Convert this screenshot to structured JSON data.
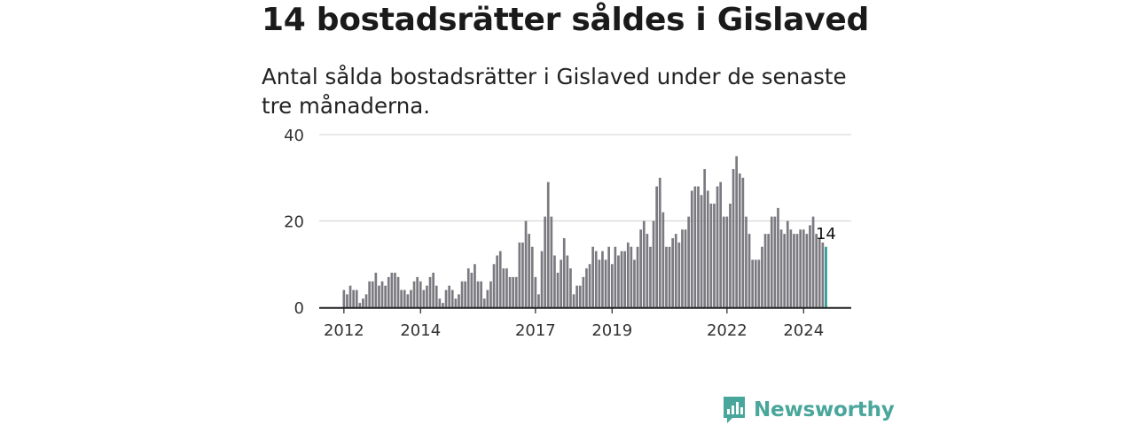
{
  "header": {
    "title": "14 bostadsrätter såldes i Gislaved",
    "subtitle": "Antal sålda bostadsrätter i Gislaved under de senaste tre månaderna."
  },
  "brand": {
    "name": "Newsworthy",
    "color": "#49a69b"
  },
  "chart_data": {
    "type": "bar",
    "title": "",
    "xlabel": "",
    "ylabel": "",
    "ylim": [
      0,
      40
    ],
    "yticks": [
      0,
      20,
      40
    ],
    "grid": true,
    "xticks": [
      "2012",
      "2014",
      "2017",
      "2019",
      "2022",
      "2024"
    ],
    "highlight_label": "14",
    "colors": {
      "bar": "#7b7a80",
      "highlight": "#2a9d90"
    },
    "categories": [
      "2012-01",
      "2012-02",
      "2012-03",
      "2012-04",
      "2012-05",
      "2012-06",
      "2012-07",
      "2012-08",
      "2012-09",
      "2012-10",
      "2012-11",
      "2012-12",
      "2013-01",
      "2013-02",
      "2013-03",
      "2013-04",
      "2013-05",
      "2013-06",
      "2013-07",
      "2013-08",
      "2013-09",
      "2013-10",
      "2013-11",
      "2013-12",
      "2014-01",
      "2014-02",
      "2014-03",
      "2014-04",
      "2014-05",
      "2014-06",
      "2014-07",
      "2014-08",
      "2014-09",
      "2014-10",
      "2014-11",
      "2014-12",
      "2015-01",
      "2015-02",
      "2015-03",
      "2015-04",
      "2015-05",
      "2015-06",
      "2015-07",
      "2015-08",
      "2015-09",
      "2015-10",
      "2015-11",
      "2015-12",
      "2016-01",
      "2016-02",
      "2016-03",
      "2016-04",
      "2016-05",
      "2016-06",
      "2016-07",
      "2016-08",
      "2016-09",
      "2016-10",
      "2016-11",
      "2016-12",
      "2017-01",
      "2017-02",
      "2017-03",
      "2017-04",
      "2017-05",
      "2017-06",
      "2017-07",
      "2017-08",
      "2017-09",
      "2017-10",
      "2017-11",
      "2017-12",
      "2018-01",
      "2018-02",
      "2018-03",
      "2018-04",
      "2018-05",
      "2018-06",
      "2018-07",
      "2018-08",
      "2018-09",
      "2018-10",
      "2018-11",
      "2018-12",
      "2019-01",
      "2019-02",
      "2019-03",
      "2019-04",
      "2019-05",
      "2019-06",
      "2019-07",
      "2019-08",
      "2019-09",
      "2019-10",
      "2019-11",
      "2019-12",
      "2020-01",
      "2020-02",
      "2020-03",
      "2020-04",
      "2020-05",
      "2020-06",
      "2020-07",
      "2020-08",
      "2020-09",
      "2020-10",
      "2020-11",
      "2020-12",
      "2021-01",
      "2021-02",
      "2021-03",
      "2021-04",
      "2021-05",
      "2021-06",
      "2021-07",
      "2021-08",
      "2021-09",
      "2021-10",
      "2021-11",
      "2021-12",
      "2022-01",
      "2022-02",
      "2022-03",
      "2022-04",
      "2022-05",
      "2022-06",
      "2022-07",
      "2022-08",
      "2022-09",
      "2022-10",
      "2022-11",
      "2022-12",
      "2023-01",
      "2023-02",
      "2023-03",
      "2023-04",
      "2023-05",
      "2023-06",
      "2023-07",
      "2023-08",
      "2023-09",
      "2023-10",
      "2023-11",
      "2023-12",
      "2024-01",
      "2024-02",
      "2024-03",
      "2024-04",
      "2024-05",
      "2024-06",
      "2024-07",
      "2024-08"
    ],
    "values": [
      4,
      3,
      5,
      4,
      4,
      1,
      2,
      3,
      6,
      6,
      8,
      5,
      6,
      5,
      7,
      8,
      8,
      7,
      4,
      4,
      3,
      4,
      6,
      7,
      6,
      4,
      5,
      7,
      8,
      5,
      2,
      1,
      4,
      5,
      4,
      2,
      3,
      6,
      6,
      9,
      8,
      10,
      6,
      6,
      2,
      4,
      6,
      10,
      12,
      13,
      9,
      9,
      7,
      7,
      7,
      15,
      15,
      20,
      17,
      14,
      7,
      3,
      13,
      21,
      29,
      21,
      12,
      8,
      11,
      16,
      12,
      9,
      3,
      5,
      5,
      7,
      9,
      10,
      14,
      13,
      11,
      13,
      11,
      14,
      10,
      14,
      12,
      13,
      13,
      15,
      14,
      11,
      14,
      18,
      20,
      17,
      14,
      20,
      28,
      30,
      22,
      14,
      14,
      16,
      17,
      15,
      18,
      18,
      21,
      27,
      28,
      28,
      26,
      32,
      27,
      24,
      24,
      28,
      29,
      21,
      21,
      24,
      32,
      35,
      31,
      30,
      21,
      17,
      11,
      11,
      11,
      14,
      17,
      17,
      21,
      21,
      23,
      18,
      17,
      20,
      18,
      17,
      17,
      18,
      18,
      17,
      19,
      21,
      17,
      16,
      15,
      14
    ]
  }
}
